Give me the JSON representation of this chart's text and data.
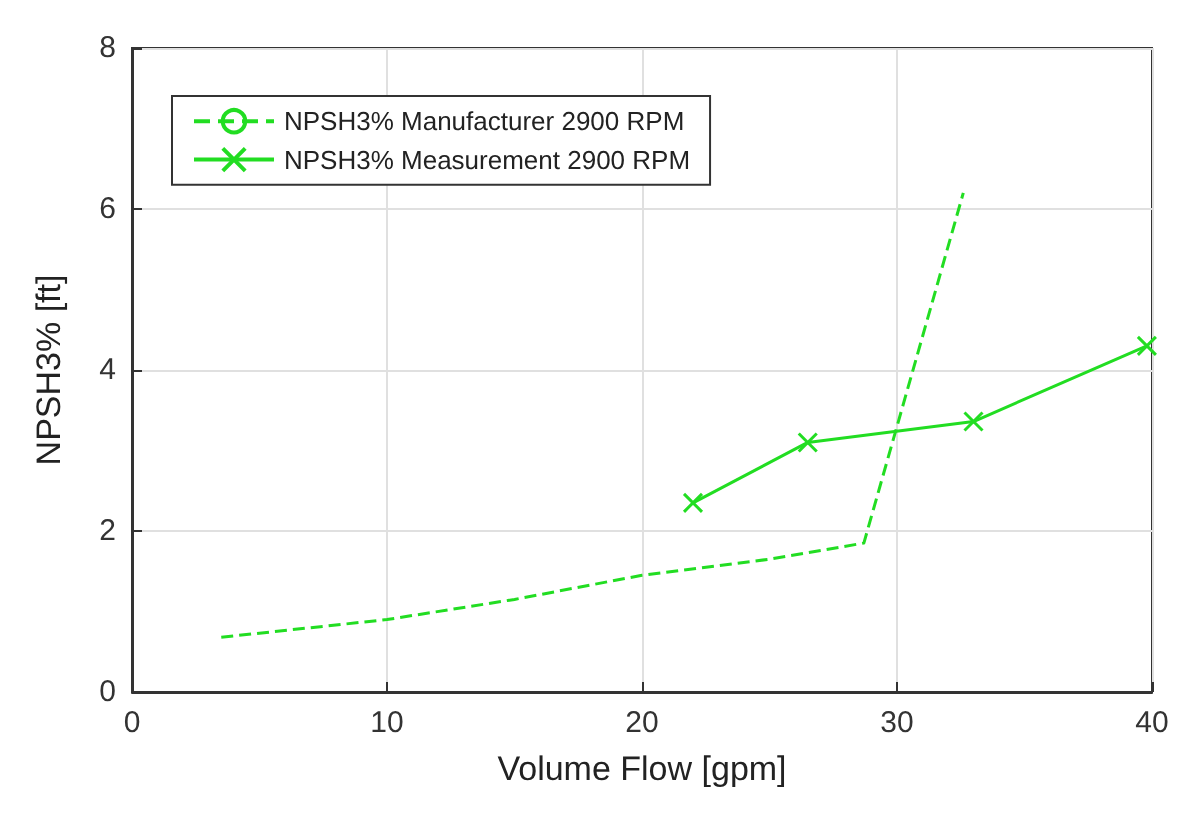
{
  "chart_data": {
    "type": "line",
    "xlabel": "Volume Flow [gpm]",
    "ylabel": "NPSH3% [ft]",
    "xlim": [
      0,
      40
    ],
    "xticks": [
      0,
      10,
      20,
      30,
      40
    ],
    "ylim": [
      0,
      8
    ],
    "yticks": [
      0,
      2,
      4,
      6,
      8
    ],
    "grid": true,
    "legend": "top left",
    "series": [
      {
        "name": "NPSH3% Manufacturer 2900 RPM",
        "color": "#22dd22",
        "line_style": "dashed",
        "marker": "none",
        "x": [
          3.5,
          10,
          15,
          20,
          25,
          28.7,
          32.6
        ],
        "values": [
          0.68,
          0.9,
          1.15,
          1.45,
          1.65,
          1.85,
          6.2
        ]
      },
      {
        "name": "NPSH3% Measurement 2900 RPM",
        "color": "#22dd22",
        "line_style": "solid",
        "marker": "cross",
        "x": [
          22,
          26.5,
          33,
          39.8
        ],
        "values": [
          2.35,
          3.1,
          3.36,
          4.3
        ]
      }
    ]
  }
}
